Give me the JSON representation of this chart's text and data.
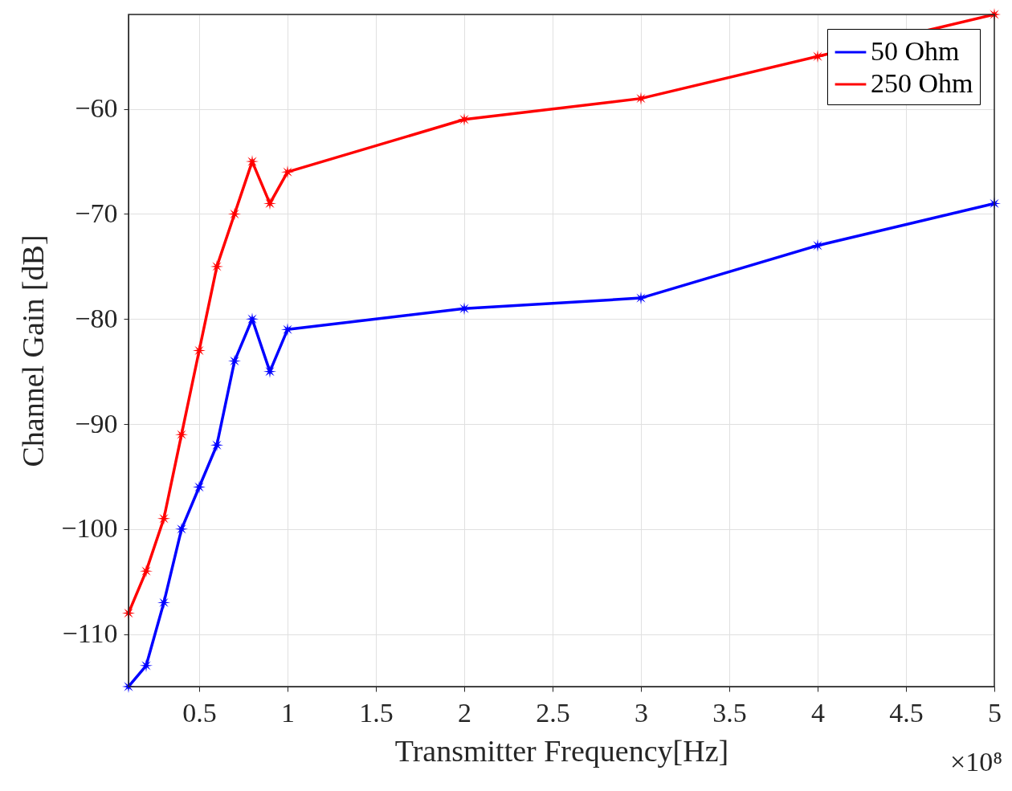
{
  "chart_data": {
    "type": "line",
    "xlabel": "Transmitter Frequency[Hz]",
    "ylabel": "Channel Gain [dB]",
    "x": [
      0.1,
      0.2,
      0.3,
      0.4,
      0.5,
      0.6,
      0.7,
      0.8,
      0.9,
      1,
      2,
      3,
      4,
      5
    ],
    "series": [
      {
        "name": "50 Ohm",
        "color": "#0000ff",
        "values": [
          -115,
          -113,
          -107,
          -100,
          -96,
          -92,
          -84,
          -80,
          -85,
          -81,
          -79,
          -78,
          -73,
          -69
        ]
      },
      {
        "name": "250 Ohm",
        "color": "#ff0000",
        "values": [
          -108,
          -104,
          -99,
          -91,
          -83,
          -75,
          -70,
          -65,
          -69,
          -66,
          -61,
          -59,
          -55,
          -51
        ]
      }
    ],
    "xlim": [
      0.1,
      5
    ],
    "xticks": [
      0.5,
      1,
      1.5,
      2,
      2.5,
      3,
      3.5,
      4,
      4.5,
      5
    ],
    "ylim": [
      -115,
      -51
    ],
    "yticks": [
      -110,
      -100,
      -90,
      -80,
      -70,
      -60
    ],
    "annotations": [
      "×10⁸"
    ],
    "grid": true,
    "legend": "top right",
    "marker": "star",
    "line_style": "solid"
  }
}
